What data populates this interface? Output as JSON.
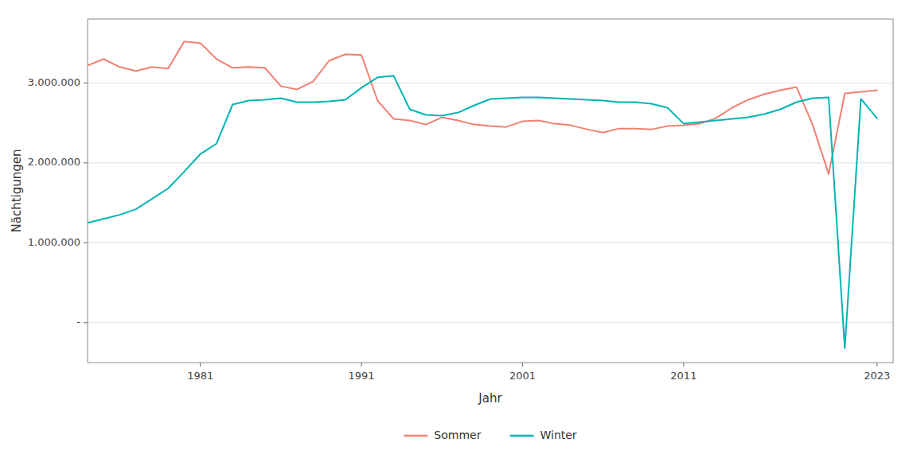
{
  "chart_data": {
    "type": "line",
    "xlabel": "Jahr",
    "ylabel": "Nächtigungen",
    "x": [
      1974,
      1975,
      1976,
      1977,
      1978,
      1979,
      1980,
      1981,
      1982,
      1983,
      1984,
      1985,
      1986,
      1987,
      1988,
      1989,
      1990,
      1991,
      1992,
      1993,
      1994,
      1995,
      1996,
      1997,
      1998,
      1999,
      2000,
      2001,
      2002,
      2003,
      2004,
      2005,
      2006,
      2007,
      2008,
      2009,
      2010,
      2011,
      2012,
      2013,
      2014,
      2015,
      2016,
      2017,
      2018,
      2019,
      2020,
      2021,
      2022,
      2023
    ],
    "series": [
      {
        "name": "Sommer",
        "color": "#F08070",
        "values": [
          3220000,
          3300000,
          3200000,
          3150000,
          3200000,
          3180000,
          3520000,
          3500000,
          3300000,
          3190000,
          3200000,
          3190000,
          2960000,
          2920000,
          3020000,
          3280000,
          3360000,
          3350000,
          2780000,
          2550000,
          2530000,
          2480000,
          2570000,
          2530000,
          2480000,
          2460000,
          2450000,
          2520000,
          2530000,
          2490000,
          2470000,
          2420000,
          2380000,
          2430000,
          2430000,
          2420000,
          2460000,
          2470000,
          2490000,
          2560000,
          2690000,
          2790000,
          2860000,
          2910000,
          2950000,
          2480000,
          1860000,
          2870000,
          2890000,
          2910000
        ]
      },
      {
        "name": "Winter",
        "color": "#00B4B4",
        "values": [
          1250000,
          1300000,
          1350000,
          1420000,
          1550000,
          1680000,
          1890000,
          2110000,
          2240000,
          2730000,
          2780000,
          2790000,
          2810000,
          2760000,
          2760000,
          2770000,
          2790000,
          2940000,
          3070000,
          3090000,
          2670000,
          2600000,
          2590000,
          2630000,
          2720000,
          2800000,
          2810000,
          2820000,
          2820000,
          2810000,
          2800000,
          2790000,
          2780000,
          2760000,
          2760000,
          2740000,
          2690000,
          2490000,
          2510000,
          2530000,
          2550000,
          2570000,
          2610000,
          2670000,
          2760000,
          2810000,
          2820000,
          -320000,
          2800000,
          2560000
        ]
      }
    ],
    "xlim": [
      1974,
      2024
    ],
    "xticks": [
      1981,
      1991,
      2001,
      2011,
      2023
    ],
    "ylim": [
      -500000,
      3800000
    ],
    "yticks": [
      {
        "value": 0,
        "label": "-"
      },
      {
        "value": 1000000,
        "label": "1.000.000"
      },
      {
        "value": 2000000,
        "label": "2.000.000"
      },
      {
        "value": 3000000,
        "label": "3.000.000"
      }
    ],
    "grid": true,
    "legend": "bottom"
  }
}
